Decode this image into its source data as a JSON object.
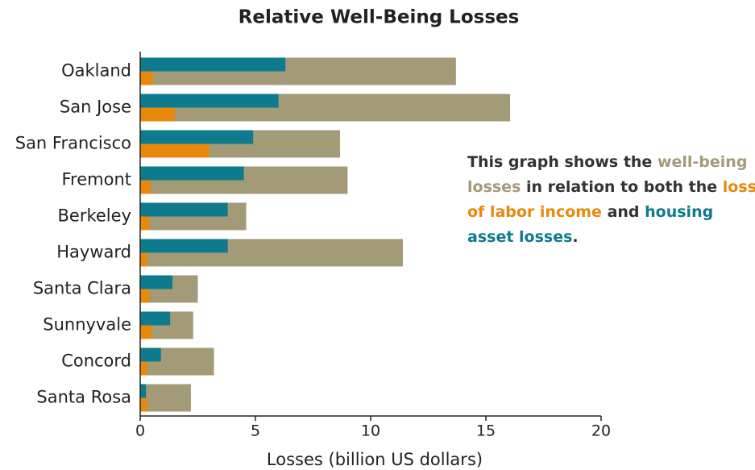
{
  "chart_data": {
    "type": "bar",
    "orientation": "horizontal",
    "title": "Relative Well-Being Losses",
    "xlabel": "Losses (billion US dollars)",
    "categories": [
      "Oakland",
      "San Jose",
      "San Francisco",
      "Fremont",
      "Berkeley",
      "Hayward",
      "Santa Clara",
      "Sunnyvale",
      "Concord",
      "Santa Rosa"
    ],
    "series": [
      {
        "color": "#a39a78",
        "values": [
          13.7,
          16.05,
          8.67,
          9.0,
          4.6,
          11.4,
          2.5,
          2.3,
          3.2,
          2.2
        ]
      },
      {
        "color": "#0e7a8e",
        "values": [
          6.3,
          6.0,
          4.9,
          4.5,
          3.8,
          3.8,
          1.4,
          1.3,
          0.9,
          0.25
        ]
      },
      {
        "color": "#e8890c",
        "values": [
          0.55,
          1.5,
          3.0,
          0.45,
          0.4,
          0.3,
          0.4,
          0.5,
          0.3,
          0.3
        ]
      }
    ],
    "xlim": [
      0,
      20
    ],
    "xticks": [
      0,
      5,
      10,
      15,
      20
    ],
    "annotation": [
      {
        "text": "This graph shows the ",
        "color": "#333333"
      },
      {
        "text": "well-being losses",
        "color": "#a39a78"
      },
      {
        "text": " in relation to both the ",
        "color": "#333333"
      },
      {
        "text": "loss of labor income",
        "color": "#e8890c"
      },
      {
        "text": " and ",
        "color": "#333333"
      },
      {
        "text": "housing asset losses",
        "color": "#0e7a8e"
      },
      {
        "text": ".",
        "color": "#333333"
      }
    ]
  }
}
